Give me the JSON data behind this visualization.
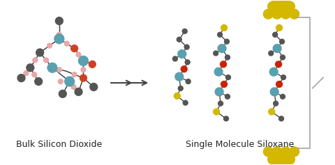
{
  "label_left": "Bulk Silicon Dioxide",
  "label_right": "Single Molecule Siloxane",
  "label_fontsize": 9,
  "bg_color": "#ffffff",
  "colors": {
    "dark_gray": "#555555",
    "teal": "#5aA0B0",
    "pink": "#e8a8a8",
    "orange_red": "#d04020",
    "red": "#cc2200",
    "yellow": "#d4b800",
    "light_gray": "#aaaaaa",
    "arrow": "#444444",
    "bond": "#333333"
  },
  "figsize": [
    4.8,
    2.37
  ],
  "dpi": 100
}
